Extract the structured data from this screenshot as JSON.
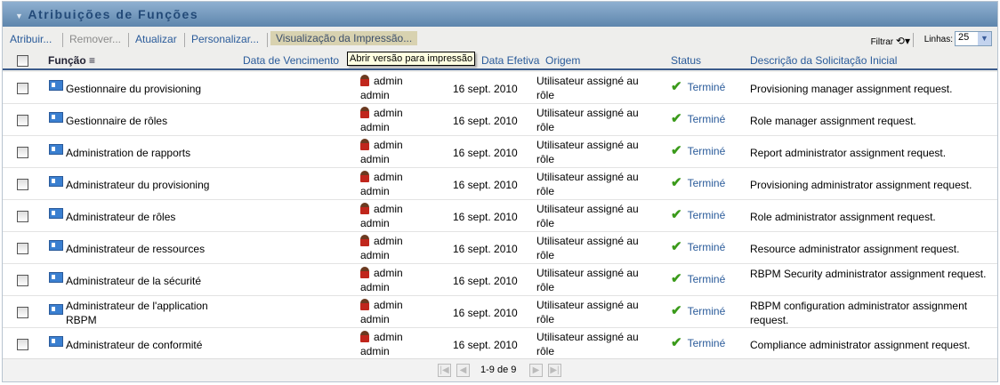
{
  "title": "Atribuições de Funções",
  "toolbar": {
    "assign": "Atribuir...",
    "remove": "Remover...",
    "refresh": "Atualizar",
    "customize": "Personalizar...",
    "print": "Visualização da Impressão...",
    "filter": "Filtrar",
    "rows_label": "Linhas:",
    "rows_value": "25"
  },
  "tooltip": "Abrir versão para impressão",
  "columns": {
    "role": "Função",
    "due": "Data de Vencimento",
    "effective": "Data Efetiva",
    "origin": "Origem",
    "status": "Status",
    "description": "Descrição da Solicitação Inicial"
  },
  "rows": [
    {
      "role": "Gestionnaire du provisioning",
      "user": "admin",
      "user2": "admin",
      "date": "16 sept. 2010",
      "origin": "Utilisateur assigné au rôle",
      "status": "Terminé",
      "desc": "Provisioning manager assignment request."
    },
    {
      "role": "Gestionnaire de rôles",
      "user": "admin",
      "user2": "admin",
      "date": "16 sept. 2010",
      "origin": "Utilisateur assigné au rôle",
      "status": "Terminé",
      "desc": "Role manager assignment request."
    },
    {
      "role": "Administration de rapports",
      "user": "admin",
      "user2": "admin",
      "date": "16 sept. 2010",
      "origin": "Utilisateur assigné au rôle",
      "status": "Terminé",
      "desc": "Report administrator assignment request."
    },
    {
      "role": "Administrateur du provisioning",
      "user": "admin",
      "user2": "admin",
      "date": "16 sept. 2010",
      "origin": "Utilisateur assigné au rôle",
      "status": "Terminé",
      "desc": "Provisioning administrator assignment request."
    },
    {
      "role": "Administrateur de rôles",
      "user": "admin",
      "user2": "admin",
      "date": "16 sept. 2010",
      "origin": "Utilisateur assigné au rôle",
      "status": "Terminé",
      "desc": "Role administrator assignment request."
    },
    {
      "role": "Administrateur de ressources",
      "user": "admin",
      "user2": "admin",
      "date": "16 sept. 2010",
      "origin": "Utilisateur assigné au rôle",
      "status": "Terminé",
      "desc": "Resource administrator assignment request."
    },
    {
      "role": "Administrateur de la sécurité",
      "user": "admin",
      "user2": "admin",
      "date": "16 sept. 2010",
      "origin": "Utilisateur assigné au rôle",
      "status": "Terminé",
      "desc": "RBPM Security administrator assignment request."
    },
    {
      "role": "Administrateur de l'application RBPM",
      "user": "admin",
      "user2": "admin",
      "date": "16 sept. 2010",
      "origin": "Utilisateur assigné au rôle",
      "status": "Terminé",
      "desc": "RBPM configuration administrator assignment request."
    },
    {
      "role": "Administrateur de conformité",
      "user": "admin",
      "user2": "admin",
      "date": "16 sept. 2010",
      "origin": "Utilisateur assigné au rôle",
      "status": "Terminé",
      "desc": "Compliance administrator assignment request."
    }
  ],
  "pagination": {
    "text": "1-9 de 9"
  }
}
